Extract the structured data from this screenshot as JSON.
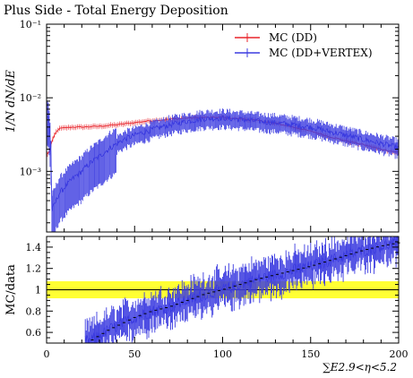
{
  "title": "Plus Side - Total Energy Deposition",
  "colors": {
    "series_dd": "#e8232a",
    "series_vertex": "#3b3be0",
    "band": "#ffff33",
    "axis": "#000000",
    "ratio_marker": "#000000"
  },
  "chart_data": [
    {
      "type": "line",
      "panel": "main",
      "ylabel": "1/N dN/dE",
      "yscale": "log",
      "ylim": [
        0.00015,
        0.1
      ],
      "xlim": [
        0,
        200
      ],
      "y_tick_labels": [
        "10⁻³",
        "10⁻²",
        "10⁻¹"
      ],
      "y_tick_values": [
        0.001,
        0.01,
        0.1
      ],
      "legend_position": "top-right",
      "series": [
        {
          "name": "MC (DD)",
          "x": [
            1,
            3,
            5,
            7,
            10,
            15,
            20,
            30,
            40,
            50,
            60,
            70,
            80,
            90,
            100,
            110,
            120,
            130,
            140,
            150,
            160,
            170,
            180,
            190,
            200
          ],
          "values": [
            0.0017,
            0.0025,
            0.0033,
            0.0038,
            0.0039,
            0.004,
            0.004,
            0.0041,
            0.0043,
            0.0046,
            0.0049,
            0.0051,
            0.0053,
            0.0054,
            0.0054,
            0.0052,
            0.0049,
            0.0045,
            0.004,
            0.0035,
            0.003,
            0.0026,
            0.0023,
            0.002,
            0.0018
          ]
        },
        {
          "name": "MC (DD+VERTEX)",
          "x": [
            1,
            3,
            5,
            7,
            10,
            15,
            20,
            25,
            30,
            35,
            40,
            45,
            50,
            60,
            70,
            80,
            90,
            100,
            110,
            120,
            130,
            140,
            150,
            160,
            170,
            180,
            190,
            200
          ],
          "values": [
            0.0055,
            0.0003,
            0.00038,
            0.0005,
            0.0006,
            0.0008,
            0.001,
            0.0013,
            0.0016,
            0.002,
            0.0024,
            0.0028,
            0.0031,
            0.0037,
            0.0043,
            0.0048,
            0.0052,
            0.0053,
            0.0051,
            0.0048,
            0.0046,
            0.0043,
            0.004,
            0.0035,
            0.0031,
            0.0027,
            0.0024,
            0.0021
          ]
        }
      ]
    },
    {
      "type": "line",
      "panel": "ratio",
      "xlabel": "∑E2.9<η<5.2",
      "ylabel": "MC/data",
      "xlim": [
        0,
        200
      ],
      "ylim": [
        0.5,
        1.5
      ],
      "x_tick_labels": [
        "0",
        "50",
        "100",
        "150",
        "200"
      ],
      "x_tick_values": [
        0,
        50,
        100,
        150,
        200
      ],
      "y_tick_labels": [
        "0.6",
        "0.8",
        "1",
        "1.2",
        "1.4"
      ],
      "y_tick_values": [
        0.6,
        0.8,
        1.0,
        1.2,
        1.4
      ],
      "band": [
        0.92,
        1.08
      ],
      "series": [
        {
          "name": "MC (DD+VERTEX)",
          "x": [
            25,
            30,
            35,
            40,
            45,
            50,
            55,
            60,
            65,
            70,
            75,
            80,
            85,
            90,
            95,
            100,
            110,
            120,
            130,
            140,
            150,
            160,
            170,
            180,
            190,
            200
          ],
          "values": [
            0.52,
            0.57,
            0.62,
            0.66,
            0.7,
            0.74,
            0.77,
            0.8,
            0.82,
            0.84,
            0.87,
            0.9,
            0.93,
            0.96,
            0.98,
            1.0,
            1.05,
            1.1,
            1.14,
            1.18,
            1.22,
            1.27,
            1.32,
            1.37,
            1.41,
            1.44
          ]
        }
      ]
    }
  ]
}
